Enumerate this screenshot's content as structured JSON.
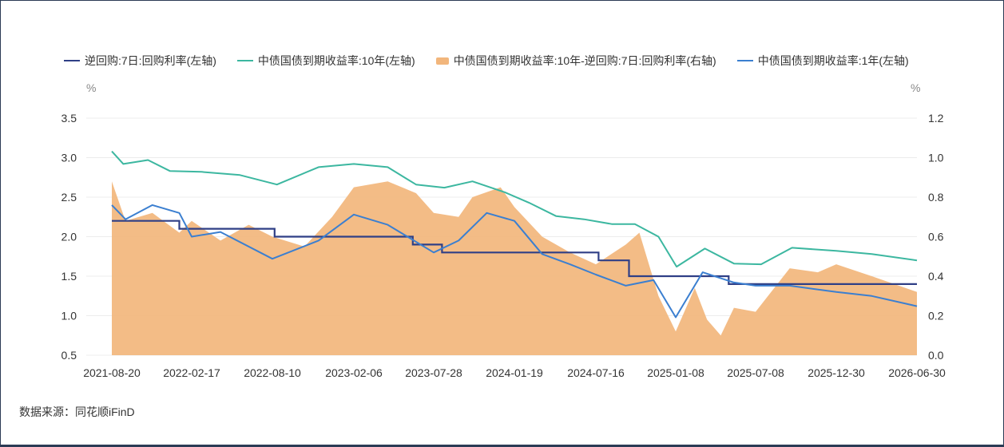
{
  "legend": {
    "s1": "逆回购:7日:回购利率(左轴)",
    "s2": "中债国债到期收益率:10年(左轴)",
    "s3": "中债国债到期收益率:10年-逆回购:7日:回购利率(右轴)",
    "s4": "中债国债到期收益率:1年(左轴)"
  },
  "source": "数据来源：同花顺iFinD",
  "colors": {
    "repo": "#2f3f86",
    "y10": "#3cb7a0",
    "spread": "#f2b67c",
    "y1": "#3b7fd0"
  },
  "chart_data": {
    "type": "line",
    "x_ticks": [
      "2021-08-20",
      "2022-02-17",
      "2022-08-10",
      "2023-02-06",
      "2023-07-28",
      "2024-01-19",
      "2024-07-16",
      "2025-01-08",
      "2025-07-08",
      "2025-12-30",
      "2026-06-30"
    ],
    "y_left": {
      "unit": "%",
      "ticks": [
        "0.5",
        "1.0",
        "1.5",
        "2.0",
        "2.5",
        "3.0",
        "3.5"
      ],
      "ylim": [
        0.5,
        3.5
      ]
    },
    "y_right": {
      "unit": "%",
      "ticks": [
        "0.0",
        "0.2",
        "0.4",
        "0.6",
        "0.8",
        "1.0",
        "1.2"
      ],
      "ylim": [
        0.0,
        1.2
      ]
    },
    "series": [
      {
        "name": "逆回购:7日:回购利率(左轴)",
        "axis": "left",
        "type": "step",
        "x": [
          "2021-08-20",
          "2022-01-20",
          "2022-08-15",
          "2023-06-13",
          "2023-08-15",
          "2024-07-22",
          "2024-09-27",
          "2025-05-08",
          "2026-06-30"
        ],
        "values": [
          2.2,
          2.1,
          2.0,
          1.9,
          1.8,
          1.7,
          1.5,
          1.4,
          1.4
        ]
      },
      {
        "name": "中债国债到期收益率:10年(左轴)",
        "axis": "left",
        "type": "line",
        "x": [
          "2021-08-20",
          "2021-09-15",
          "2021-11-10",
          "2021-12-30",
          "2022-03-10",
          "2022-06-01",
          "2022-08-20",
          "2022-11-20",
          "2023-02-06",
          "2023-04-20",
          "2023-06-20",
          "2023-08-20",
          "2023-10-20",
          "2023-12-30",
          "2024-02-20",
          "2024-04-20",
          "2024-06-20",
          "2024-08-20",
          "2024-10-10",
          "2024-12-01",
          "2025-01-10",
          "2025-03-15",
          "2025-05-20",
          "2025-07-20",
          "2025-09-25",
          "2025-12-30",
          "2026-03-20",
          "2026-06-30"
        ],
        "values": [
          3.08,
          2.92,
          2.97,
          2.83,
          2.82,
          2.78,
          2.66,
          2.88,
          2.92,
          2.88,
          2.66,
          2.62,
          2.7,
          2.56,
          2.43,
          2.26,
          2.22,
          2.16,
          2.16,
          2.0,
          1.62,
          1.85,
          1.66,
          1.65,
          1.86,
          1.82,
          1.78,
          1.7
        ]
      },
      {
        "name": "中债国债到期收益率:1年(左轴)",
        "axis": "left",
        "type": "line",
        "x": [
          "2021-08-20",
          "2021-09-20",
          "2021-11-20",
          "2022-01-20",
          "2022-02-17",
          "2022-04-20",
          "2022-08-10",
          "2022-11-20",
          "2023-02-06",
          "2023-04-20",
          "2023-07-28",
          "2023-09-20",
          "2023-11-20",
          "2024-01-19",
          "2024-03-20",
          "2024-05-20",
          "2024-07-16",
          "2024-09-20",
          "2024-11-20",
          "2025-01-08",
          "2025-03-10",
          "2025-05-20",
          "2025-07-08",
          "2025-09-20",
          "2025-12-30",
          "2026-03-20",
          "2026-06-30"
        ],
        "values": [
          2.4,
          2.22,
          2.4,
          2.3,
          2.0,
          2.06,
          1.72,
          1.95,
          2.28,
          2.15,
          1.8,
          1.95,
          2.3,
          2.2,
          1.78,
          1.65,
          1.52,
          1.38,
          1.45,
          0.98,
          1.55,
          1.42,
          1.38,
          1.38,
          1.3,
          1.25,
          1.12
        ]
      },
      {
        "name": "中债国债到期收益率:10年-逆回购:7日:回购利率(右轴)",
        "axis": "right",
        "type": "area",
        "x": [
          "2021-08-20",
          "2021-09-20",
          "2021-11-20",
          "2022-01-20",
          "2022-02-17",
          "2022-04-20",
          "2022-06-20",
          "2022-08-10",
          "2022-10-20",
          "2022-12-20",
          "2023-02-06",
          "2023-04-20",
          "2023-06-20",
          "2023-07-28",
          "2023-09-20",
          "2023-10-20",
          "2023-12-20",
          "2024-01-19",
          "2024-03-20",
          "2024-05-20",
          "2024-07-16",
          "2024-09-20",
          "2024-10-20",
          "2024-12-01",
          "2025-01-08",
          "2025-02-20",
          "2025-03-20",
          "2025-04-20",
          "2025-05-20",
          "2025-07-08",
          "2025-09-20",
          "2025-11-20",
          "2025-12-30",
          "2026-03-20",
          "2026-06-30"
        ],
        "values": [
          0.88,
          0.68,
          0.72,
          0.62,
          0.68,
          0.58,
          0.66,
          0.6,
          0.55,
          0.7,
          0.85,
          0.88,
          0.82,
          0.72,
          0.7,
          0.8,
          0.85,
          0.75,
          0.6,
          0.52,
          0.46,
          0.56,
          0.62,
          0.3,
          0.12,
          0.34,
          0.18,
          0.1,
          0.24,
          0.22,
          0.44,
          0.42,
          0.46,
          0.4,
          0.32
        ]
      }
    ]
  }
}
